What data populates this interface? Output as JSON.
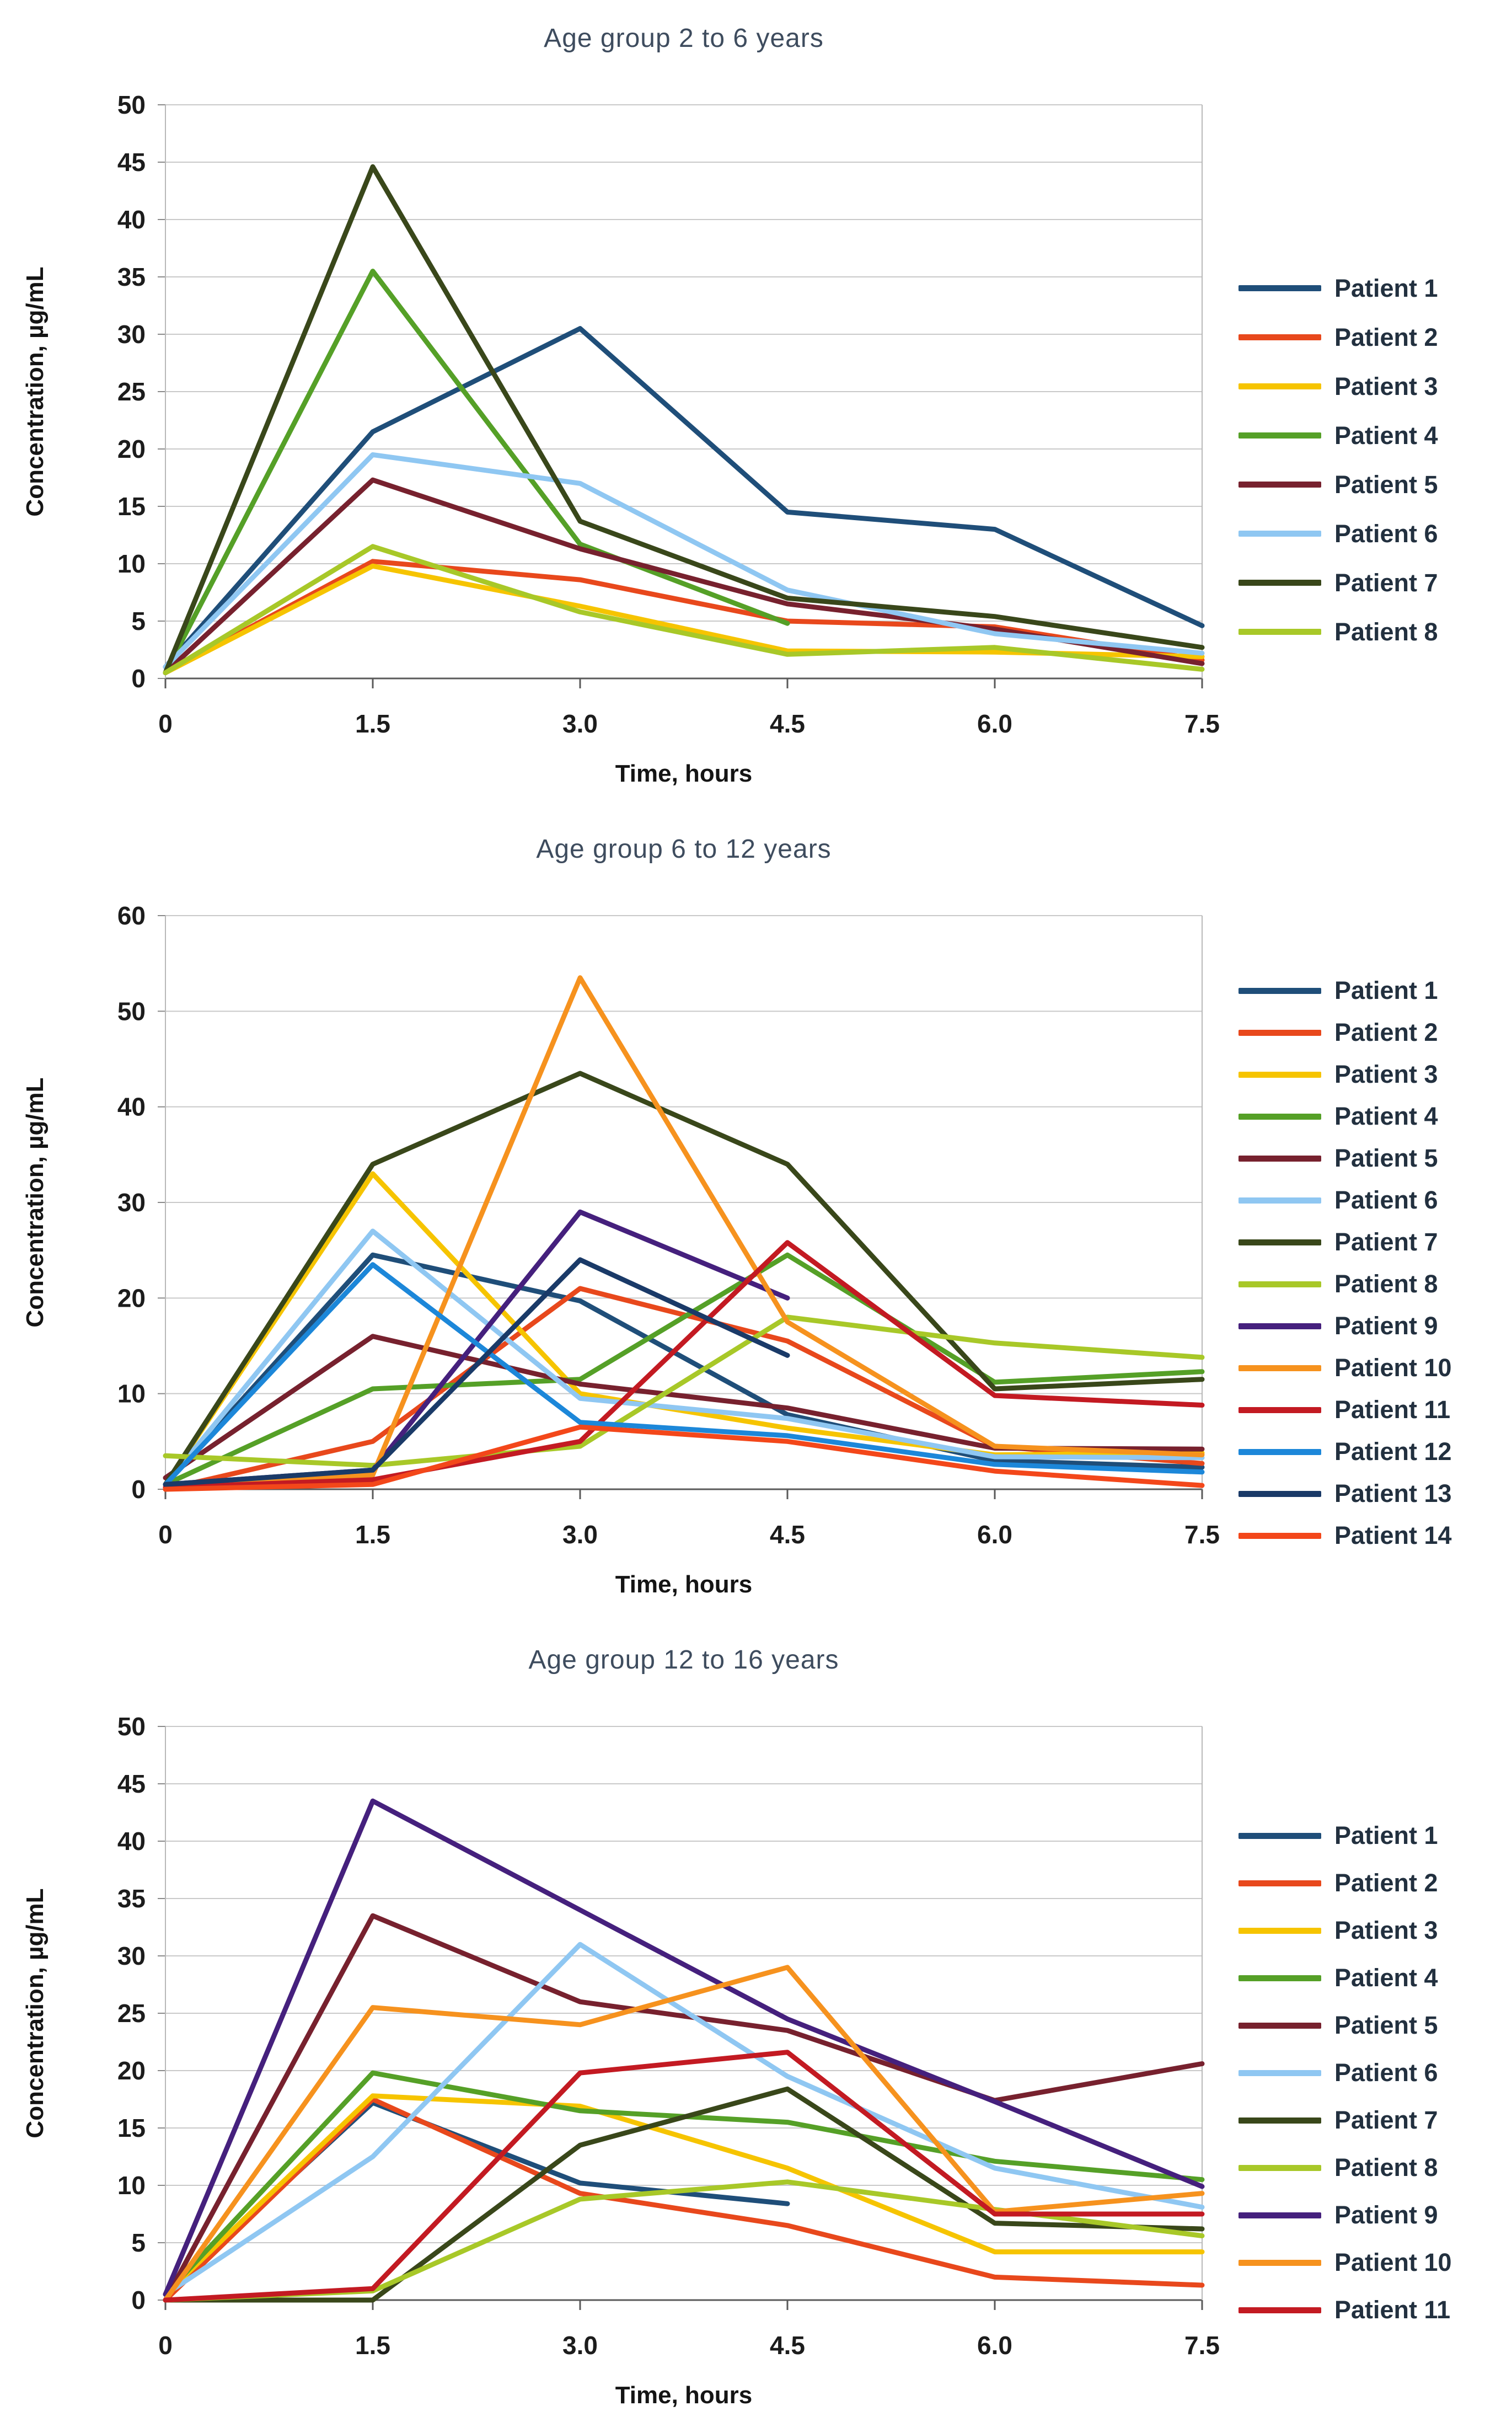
{
  "figure": {
    "x_axis_title": "Time, hours",
    "y_axis_title": "Concentration, µg/mL",
    "background": "#FFFFFF",
    "grid_color": "#C9C9C9",
    "axis_color": "#5A5A5A",
    "title_color": "#3E4C5E"
  },
  "chart_data": [
    {
      "type": "line",
      "title": "Age group 2 to 6 years",
      "xlabel": "Time, hours",
      "ylabel": "Concentration, µg/mL",
      "ylim": [
        0,
        50
      ],
      "ystep": 5,
      "x": [
        0,
        1.5,
        3,
        4.5,
        6,
        7.5
      ],
      "x_labels": [
        "0",
        "1.5",
        "3.0",
        "4.5",
        "6.0",
        "7.5"
      ],
      "legend_position": "right",
      "grid": true,
      "series": [
        {
          "name": "Patient 1",
          "color": "#1F4E79",
          "values": [
            1,
            21.5,
            30.5,
            14.5,
            13,
            4.6
          ]
        },
        {
          "name": "Patient 2",
          "color": "#E8481C",
          "values": [
            0.5,
            10.2,
            8.6,
            5,
            4.5,
            1.6
          ]
        },
        {
          "name": "Patient 3",
          "color": "#F6C400",
          "values": [
            0.5,
            9.8,
            6.3,
            2.4,
            2.3,
            1.9
          ]
        },
        {
          "name": "Patient 4",
          "color": "#55A027",
          "values": [
            0.5,
            35.5,
            11.7,
            4.8,
            null,
            null
          ]
        },
        {
          "name": "Patient 5",
          "color": "#77212E",
          "values": [
            0.5,
            17.3,
            11.3,
            6.5,
            4.3,
            1.3
          ]
        },
        {
          "name": "Patient 6",
          "color": "#8FC7F2",
          "values": [
            1,
            19.5,
            17,
            7.7,
            3.9,
            2.2
          ]
        },
        {
          "name": "Patient 7",
          "color": "#39471A",
          "values": [
            0.5,
            44.6,
            13.7,
            7,
            5.4,
            2.7
          ]
        },
        {
          "name": "Patient 8",
          "color": "#A8C828",
          "values": [
            0.5,
            11.5,
            5.8,
            2.1,
            2.7,
            0.8
          ]
        }
      ]
    },
    {
      "type": "line",
      "title": "Age group 6 to 12 years",
      "xlabel": "Time, hours",
      "ylabel": "Concentration, µg/mL",
      "ylim": [
        0,
        60
      ],
      "ystep": 10,
      "x": [
        0,
        1.5,
        3,
        4.5,
        6,
        7.5
      ],
      "x_labels": [
        "0",
        "1.5",
        "3.0",
        "4.5",
        "6.0",
        "7.5"
      ],
      "legend_position": "right",
      "grid": true,
      "series": [
        {
          "name": "Patient 1",
          "color": "#1F4E79",
          "values": [
            0.5,
            24.5,
            19.7,
            7.8,
            3,
            2.3
          ]
        },
        {
          "name": "Patient 2",
          "color": "#E8481C",
          "values": [
            0,
            5,
            21,
            15.5,
            4.5,
            2.7
          ]
        },
        {
          "name": "Patient 3",
          "color": "#F6C400",
          "values": [
            0.5,
            33,
            10,
            6.4,
            3.6,
            3.8
          ]
        },
        {
          "name": "Patient 4",
          "color": "#55A027",
          "values": [
            0.5,
            10.5,
            11.5,
            24.5,
            11.2,
            12.3
          ]
        },
        {
          "name": "Patient 5",
          "color": "#77212E",
          "values": [
            1.2,
            16,
            11,
            8.5,
            4.3,
            4.2
          ]
        },
        {
          "name": "Patient 6",
          "color": "#8FC7F2",
          "values": [
            0.5,
            27,
            9.5,
            7.4,
            3.4,
            3.3
          ]
        },
        {
          "name": "Patient 7",
          "color": "#39471A",
          "values": [
            0.5,
            34,
            43.5,
            34,
            10.5,
            11.5
          ]
        },
        {
          "name": "Patient 8",
          "color": "#A8C828",
          "values": [
            3.5,
            2.5,
            4.5,
            18,
            15.3,
            13.8
          ]
        },
        {
          "name": "Patient 9",
          "color": "#45207D",
          "values": [
            0.5,
            2,
            29,
            20,
            null,
            null
          ]
        },
        {
          "name": "Patient 10",
          "color": "#F6921E",
          "values": [
            0,
            1.5,
            53.5,
            17.5,
            4.5,
            3.6
          ]
        },
        {
          "name": "Patient 11",
          "color": "#C31A22",
          "values": [
            0.2,
            1,
            5,
            25.8,
            9.8,
            8.8
          ]
        },
        {
          "name": "Patient 12",
          "color": "#1C87D9",
          "values": [
            0.5,
            23.5,
            7,
            5.6,
            2.6,
            1.8
          ]
        },
        {
          "name": "Patient 13",
          "color": "#1A3A68",
          "values": [
            0.5,
            2,
            24,
            14,
            null,
            null
          ]
        },
        {
          "name": "Patient 14",
          "color": "#F3471A",
          "values": [
            0,
            0.5,
            6.5,
            5,
            1.9,
            0.4
          ]
        }
      ]
    },
    {
      "type": "line",
      "title": "Age group 12 to 16 years",
      "xlabel": "Time, hours",
      "ylabel": "Concentration, µg/mL",
      "ylim": [
        0,
        50
      ],
      "ystep": 5,
      "x": [
        0,
        1.5,
        3,
        4.5,
        6,
        7.5
      ],
      "x_labels": [
        "0",
        "1.5",
        "3.0",
        "4.5",
        "6.0",
        "7.5"
      ],
      "legend_position": "right",
      "grid": true,
      "series": [
        {
          "name": "Patient 1",
          "color": "#1F4E79",
          "values": [
            0.5,
            17.2,
            10.2,
            8.4,
            null,
            null
          ]
        },
        {
          "name": "Patient 2",
          "color": "#E8481C",
          "values": [
            0,
            17.5,
            9.3,
            6.5,
            2,
            1.3
          ]
        },
        {
          "name": "Patient 3",
          "color": "#F6C400",
          "values": [
            0.5,
            17.8,
            16.9,
            11.5,
            4.2,
            4.2
          ]
        },
        {
          "name": "Patient 4",
          "color": "#55A027",
          "values": [
            0.5,
            19.8,
            16.5,
            15.5,
            12.1,
            10.5
          ]
        },
        {
          "name": "Patient 5",
          "color": "#77212E",
          "values": [
            0,
            33.5,
            26,
            23.5,
            17.4,
            20.6
          ]
        },
        {
          "name": "Patient 6",
          "color": "#8FC7F2",
          "values": [
            0.5,
            12.5,
            31,
            19.5,
            11.5,
            8.1
          ]
        },
        {
          "name": "Patient 7",
          "color": "#39471A",
          "values": [
            0,
            0,
            13.5,
            18.4,
            6.7,
            6.2
          ]
        },
        {
          "name": "Patient 8",
          "color": "#A8C828",
          "values": [
            0,
            0.8,
            8.8,
            10.3,
            7.9,
            5.6
          ]
        },
        {
          "name": "Patient 9",
          "color": "#45207D",
          "values": [
            0.5,
            43.5,
            34,
            24.5,
            17.3,
            9.9
          ]
        },
        {
          "name": "Patient 10",
          "color": "#F6921E",
          "values": [
            0,
            25.5,
            24,
            29,
            7.7,
            9.3
          ]
        },
        {
          "name": "Patient 11",
          "color": "#C31A22",
          "values": [
            0,
            1,
            19.8,
            21.6,
            7.5,
            7.5
          ]
        }
      ]
    }
  ]
}
